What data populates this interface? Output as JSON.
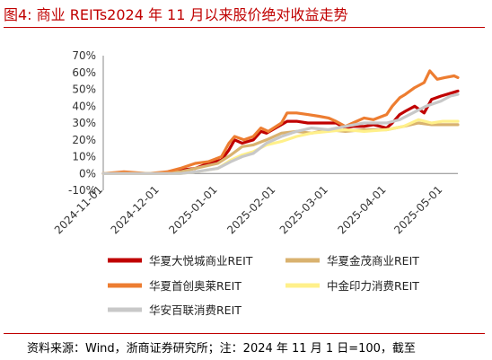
{
  "figure": {
    "title": "图4:   商业 REITs2024 年 11 月以来股价绝对收益走势",
    "source": "资料来源：Wind，浙商证券研究所；注：2024 年 11 月 1 日=100，截至"
  },
  "chart_data": {
    "type": "line",
    "title": "",
    "xlabel": "",
    "ylabel": "",
    "x_start": "2024-11-01",
    "x_end": "2025-05-09",
    "xticks": [
      "2024-11-01",
      "2024-12-01",
      "2025-01-01",
      "2025-02-01",
      "2025-03-01",
      "2025-04-01",
      "2025-05-01"
    ],
    "ylim": [
      -10,
      70
    ],
    "yticks": [
      -10,
      0,
      10,
      20,
      30,
      40,
      50,
      60,
      70
    ],
    "ytick_labels": [
      "-10%",
      "0%",
      "10%",
      "20%",
      "30%",
      "40%",
      "50%",
      "60%",
      "70%"
    ],
    "grid": false,
    "legend_position": "bottom",
    "series": [
      {
        "name": "华夏大悦城商业REIT",
        "color": "#c00000",
        "points": [
          [
            "2024-11-01",
            0
          ],
          [
            "2024-11-12",
            0
          ],
          [
            "2024-11-25",
            0
          ],
          [
            "2024-12-05",
            0
          ],
          [
            "2024-12-12",
            2
          ],
          [
            "2024-12-20",
            3
          ],
          [
            "2024-12-27",
            6
          ],
          [
            "2025-01-03",
            8
          ],
          [
            "2025-01-07",
            14
          ],
          [
            "2025-01-10",
            20
          ],
          [
            "2025-01-14",
            18
          ],
          [
            "2025-01-20",
            20
          ],
          [
            "2025-01-24",
            25
          ],
          [
            "2025-01-27",
            24
          ],
          [
            "2025-02-04",
            29
          ],
          [
            "2025-02-07",
            31
          ],
          [
            "2025-02-12",
            31
          ],
          [
            "2025-02-18",
            30
          ],
          [
            "2025-02-24",
            30
          ],
          [
            "2025-03-01",
            30
          ],
          [
            "2025-03-05",
            30
          ],
          [
            "2025-03-10",
            27
          ],
          [
            "2025-03-14",
            28
          ],
          [
            "2025-03-20",
            28
          ],
          [
            "2025-03-25",
            29
          ],
          [
            "2025-04-01",
            27
          ],
          [
            "2025-04-04",
            30
          ],
          [
            "2025-04-08",
            35
          ],
          [
            "2025-04-11",
            37
          ],
          [
            "2025-04-16",
            40
          ],
          [
            "2025-04-21",
            36
          ],
          [
            "2025-04-25",
            44
          ],
          [
            "2025-04-30",
            46
          ],
          [
            "2025-05-06",
            48
          ],
          [
            "2025-05-09",
            49
          ]
        ]
      },
      {
        "name": "华夏金茂商业REIT",
        "color": "#d9b26f",
        "points": [
          [
            "2024-11-01",
            0
          ],
          [
            "2024-11-15",
            0
          ],
          [
            "2024-12-01",
            0
          ],
          [
            "2024-12-12",
            1
          ],
          [
            "2024-12-20",
            3
          ],
          [
            "2025-01-01",
            6
          ],
          [
            "2025-01-08",
            11
          ],
          [
            "2025-01-14",
            16
          ],
          [
            "2025-01-20",
            17
          ],
          [
            "2025-01-27",
            20
          ],
          [
            "2025-02-04",
            24
          ],
          [
            "2025-02-12",
            25
          ],
          [
            "2025-02-20",
            24
          ],
          [
            "2025-03-01",
            26
          ],
          [
            "2025-03-10",
            25
          ],
          [
            "2025-03-20",
            26
          ],
          [
            "2025-04-01",
            26
          ],
          [
            "2025-04-10",
            28
          ],
          [
            "2025-04-18",
            30
          ],
          [
            "2025-04-25",
            29
          ],
          [
            "2025-05-01",
            29
          ],
          [
            "2025-05-09",
            29
          ]
        ]
      },
      {
        "name": "华夏首创奥莱REIT",
        "color": "#ed7d31",
        "points": [
          [
            "2024-11-01",
            0
          ],
          [
            "2024-11-12",
            1
          ],
          [
            "2024-11-25",
            0
          ],
          [
            "2024-12-05",
            1
          ],
          [
            "2024-12-12",
            3
          ],
          [
            "2024-12-20",
            6
          ],
          [
            "2024-12-27",
            7
          ],
          [
            "2025-01-03",
            10
          ],
          [
            "2025-01-07",
            18
          ],
          [
            "2025-01-10",
            22
          ],
          [
            "2025-01-15",
            20
          ],
          [
            "2025-01-20",
            22
          ],
          [
            "2025-01-24",
            27
          ],
          [
            "2025-01-28",
            25
          ],
          [
            "2025-02-04",
            30
          ],
          [
            "2025-02-07",
            36
          ],
          [
            "2025-02-12",
            36
          ],
          [
            "2025-02-18",
            35
          ],
          [
            "2025-02-24",
            34
          ],
          [
            "2025-03-01",
            33
          ],
          [
            "2025-03-05",
            31
          ],
          [
            "2025-03-10",
            28
          ],
          [
            "2025-03-14",
            30
          ],
          [
            "2025-03-20",
            33
          ],
          [
            "2025-03-25",
            32
          ],
          [
            "2025-04-01",
            35
          ],
          [
            "2025-04-04",
            40
          ],
          [
            "2025-04-08",
            45
          ],
          [
            "2025-04-11",
            47
          ],
          [
            "2025-04-16",
            51
          ],
          [
            "2025-04-21",
            54
          ],
          [
            "2025-04-24",
            61
          ],
          [
            "2025-04-28",
            56
          ],
          [
            "2025-05-02",
            57
          ],
          [
            "2025-05-07",
            58
          ],
          [
            "2025-05-09",
            57
          ]
        ]
      },
      {
        "name": "中金印力消费REIT",
        "color": "#fff08a",
        "points": [
          [
            "2024-11-01",
            0
          ],
          [
            "2024-11-15",
            0
          ],
          [
            "2024-12-01",
            0
          ],
          [
            "2024-12-12",
            0
          ],
          [
            "2024-12-20",
            1
          ],
          [
            "2025-01-01",
            3
          ],
          [
            "2025-01-08",
            8
          ],
          [
            "2025-01-14",
            11
          ],
          [
            "2025-01-20",
            13
          ],
          [
            "2025-01-27",
            17
          ],
          [
            "2025-02-04",
            19
          ],
          [
            "2025-02-12",
            22
          ],
          [
            "2025-02-20",
            24
          ],
          [
            "2025-03-01",
            25
          ],
          [
            "2025-03-10",
            26
          ],
          [
            "2025-03-20",
            25
          ],
          [
            "2025-04-01",
            26
          ],
          [
            "2025-04-10",
            28
          ],
          [
            "2025-04-18",
            32
          ],
          [
            "2025-04-25",
            30
          ],
          [
            "2025-05-01",
            31
          ],
          [
            "2025-05-09",
            31
          ]
        ]
      },
      {
        "name": "华安百联消费REIT",
        "color": "#c8c8c8",
        "points": [
          [
            "2024-11-01",
            0
          ],
          [
            "2024-11-15",
            0
          ],
          [
            "2024-12-01",
            0
          ],
          [
            "2024-12-12",
            0
          ],
          [
            "2024-12-20",
            1
          ],
          [
            "2025-01-01",
            3
          ],
          [
            "2025-01-08",
            7
          ],
          [
            "2025-01-14",
            10
          ],
          [
            "2025-01-20",
            12
          ],
          [
            "2025-01-27",
            18
          ],
          [
            "2025-02-04",
            22
          ],
          [
            "2025-02-12",
            25
          ],
          [
            "2025-02-20",
            27
          ],
          [
            "2025-03-01",
            26
          ],
          [
            "2025-03-10",
            28
          ],
          [
            "2025-03-20",
            30
          ],
          [
            "2025-04-01",
            30
          ],
          [
            "2025-04-08",
            32
          ],
          [
            "2025-04-15",
            36
          ],
          [
            "2025-04-22",
            40
          ],
          [
            "2025-04-30",
            43
          ],
          [
            "2025-05-05",
            46
          ],
          [
            "2025-05-09",
            47
          ]
        ]
      }
    ]
  }
}
